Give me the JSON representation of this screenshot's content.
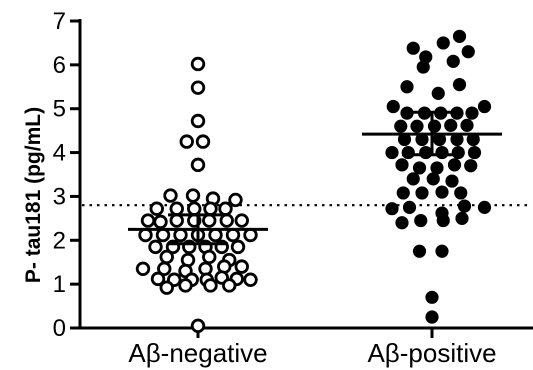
{
  "chart_data": {
    "type": "scatter",
    "ylabel": "P- tau181 (pg/mL)",
    "ylim": [
      0,
      7
    ],
    "yticks": [
      0,
      1,
      2,
      3,
      4,
      5,
      6,
      7
    ],
    "categories": [
      "Aβ-negative",
      "Aβ-positive"
    ],
    "threshold": 2.8,
    "series": [
      {
        "category": "Aβ-negative",
        "marker": "open",
        "mean": 2.25,
        "error_low": 1.92,
        "error_high": 2.58,
        "points": [
          [
            0,
            6.02
          ],
          [
            0,
            5.48
          ],
          [
            0,
            4.72
          ],
          [
            -0.9,
            4.25
          ],
          [
            0.4,
            4.25
          ],
          [
            0,
            3.72
          ],
          [
            -2.2,
            3.02
          ],
          [
            -0.4,
            3.02
          ],
          [
            1.2,
            2.95
          ],
          [
            3.0,
            2.92
          ],
          [
            -3.3,
            2.72
          ],
          [
            -1.7,
            2.72
          ],
          [
            -0.3,
            2.72
          ],
          [
            1.0,
            2.72
          ],
          [
            2.2,
            2.72
          ],
          [
            -4.0,
            2.45
          ],
          [
            -3.0,
            2.42
          ],
          [
            -1.7,
            2.45
          ],
          [
            -0.3,
            2.45
          ],
          [
            0.9,
            2.45
          ],
          [
            2.3,
            2.45
          ],
          [
            3.5,
            2.45
          ],
          [
            -4.2,
            2.12
          ],
          [
            -2.8,
            2.12
          ],
          [
            -1.4,
            2.12
          ],
          [
            0,
            2.12
          ],
          [
            1.4,
            2.12
          ],
          [
            2.8,
            2.12
          ],
          [
            4.2,
            2.12
          ],
          [
            -3.4,
            1.85
          ],
          [
            -2.0,
            1.85
          ],
          [
            -0.7,
            1.85
          ],
          [
            0.6,
            1.85
          ],
          [
            1.9,
            1.85
          ],
          [
            3.2,
            1.85
          ],
          [
            -2.5,
            1.62
          ],
          [
            -0.8,
            1.55
          ],
          [
            0.9,
            1.62
          ],
          [
            2.5,
            1.55
          ],
          [
            -4.4,
            1.35
          ],
          [
            -2.7,
            1.35
          ],
          [
            -1.0,
            1.3
          ],
          [
            0.6,
            1.35
          ],
          [
            2.1,
            1.4
          ],
          [
            3.5,
            1.4
          ],
          [
            -3.2,
            1.12
          ],
          [
            -1.9,
            1.1
          ],
          [
            -0.5,
            1.1
          ],
          [
            0.7,
            1.1
          ],
          [
            1.9,
            1.15
          ],
          [
            3.1,
            1.12
          ],
          [
            4.2,
            1.1
          ],
          [
            -2.5,
            0.92
          ],
          [
            -1.0,
            0.97
          ],
          [
            1.0,
            0.97
          ],
          [
            2.5,
            0.97
          ],
          [
            0,
            0.05
          ]
        ]
      },
      {
        "category": "Aβ-positive",
        "marker": "filled",
        "mean": 4.42,
        "error_low": 3.95,
        "error_high": 4.92,
        "points": [
          [
            2.2,
            6.65
          ],
          [
            0.9,
            6.5
          ],
          [
            -1.5,
            6.38
          ],
          [
            2.9,
            6.3
          ],
          [
            -0.5,
            6.18
          ],
          [
            1.7,
            6.08
          ],
          [
            -0.7,
            5.95
          ],
          [
            2.2,
            5.55
          ],
          [
            -2.0,
            5.5
          ],
          [
            0.5,
            5.35
          ],
          [
            -3.1,
            5.05
          ],
          [
            4.2,
            5.05
          ],
          [
            -2.0,
            4.9
          ],
          [
            -0.6,
            4.9
          ],
          [
            0.7,
            4.9
          ],
          [
            2.0,
            4.9
          ],
          [
            3.2,
            4.9
          ],
          [
            -2.5,
            4.6
          ],
          [
            -1.2,
            4.6
          ],
          [
            0.2,
            4.6
          ],
          [
            1.5,
            4.62
          ],
          [
            2.8,
            4.62
          ],
          [
            -2.2,
            4.3
          ],
          [
            -0.8,
            4.3
          ],
          [
            0.6,
            4.3
          ],
          [
            2.0,
            4.3
          ],
          [
            3.3,
            4.3
          ],
          [
            -3.2,
            4.0
          ],
          [
            -1.9,
            4.0
          ],
          [
            -0.5,
            4.0
          ],
          [
            0.8,
            4.0
          ],
          [
            2.1,
            4.0
          ],
          [
            3.4,
            4.0
          ],
          [
            -2.4,
            3.72
          ],
          [
            -1.0,
            3.65
          ],
          [
            0.4,
            3.65
          ],
          [
            1.8,
            3.72
          ],
          [
            3.1,
            3.7
          ],
          [
            -1.5,
            3.4
          ],
          [
            0.1,
            3.4
          ],
          [
            1.6,
            3.35
          ],
          [
            -2.3,
            3.08
          ],
          [
            -0.8,
            3.08
          ],
          [
            0.8,
            3.1
          ],
          [
            2.3,
            3.08
          ],
          [
            -3.2,
            2.72
          ],
          [
            -1.8,
            2.75
          ],
          [
            0.8,
            2.62
          ],
          [
            2.6,
            2.78
          ],
          [
            4.2,
            2.75
          ],
          [
            -2.4,
            2.4
          ],
          [
            -0.9,
            2.45
          ],
          [
            0.9,
            2.45
          ],
          [
            2.4,
            2.5
          ],
          [
            -1.0,
            1.75
          ],
          [
            0.8,
            1.75
          ],
          [
            0,
            0.7
          ],
          [
            0,
            0.25
          ]
        ]
      }
    ]
  }
}
